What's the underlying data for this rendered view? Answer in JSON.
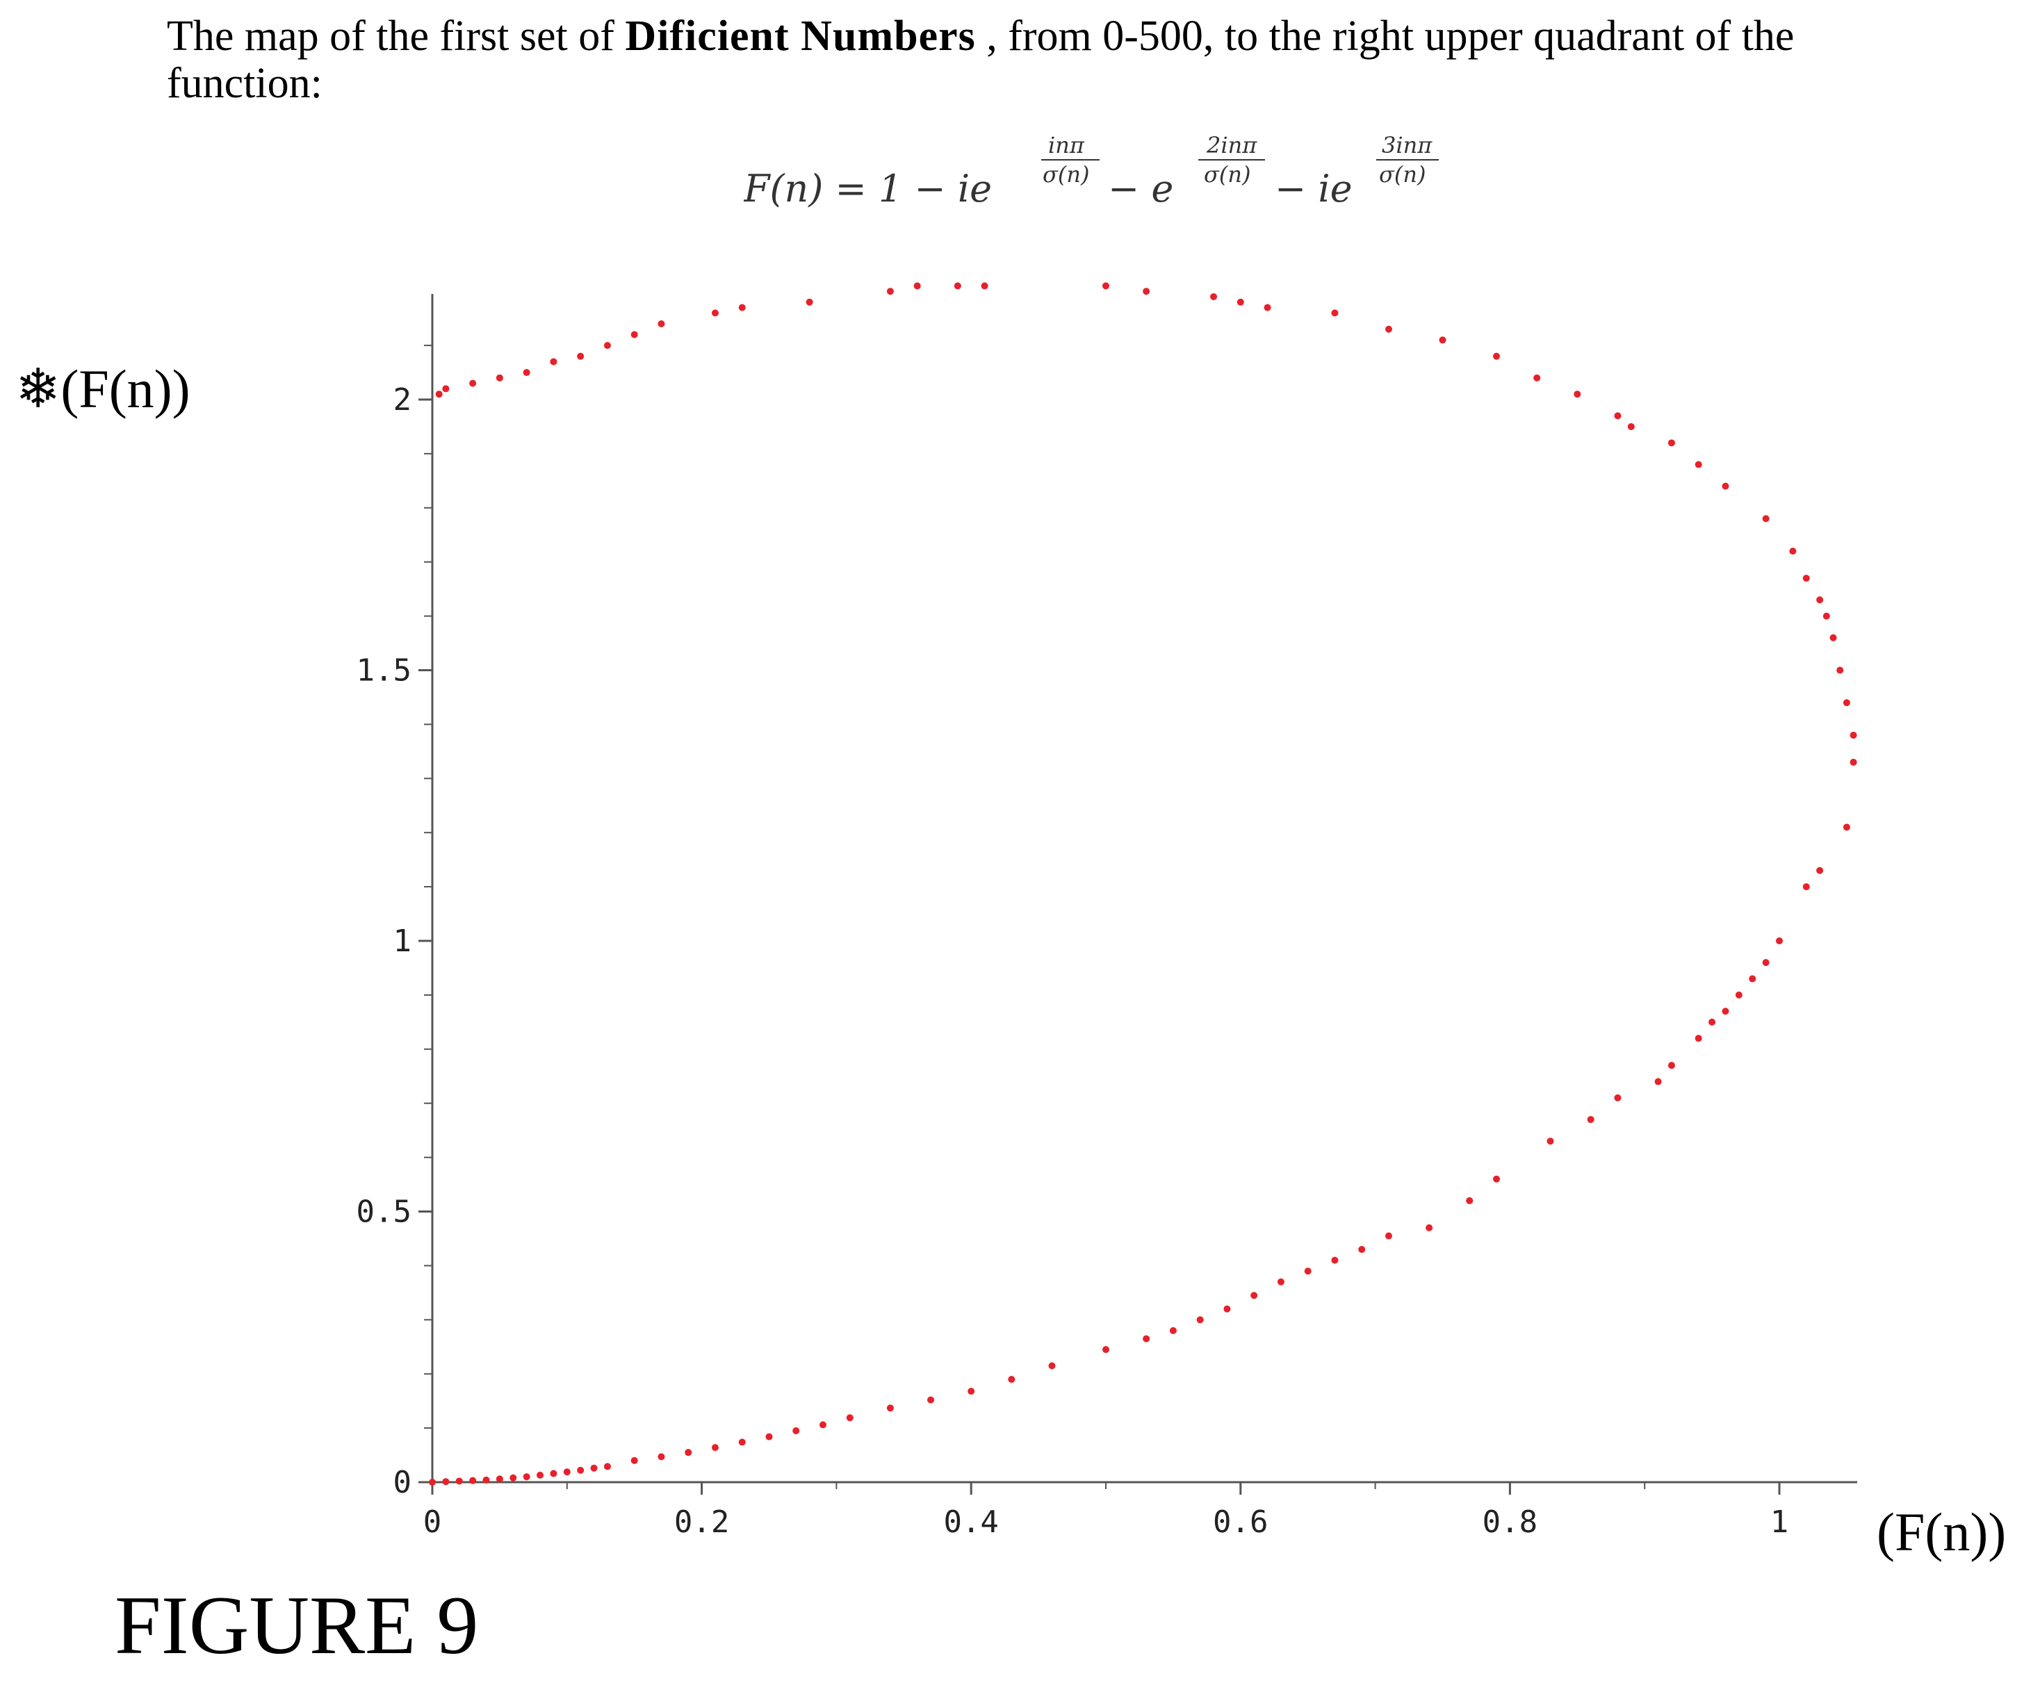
{
  "intro": {
    "before": "The map of the first set of ",
    "bold": "Dificient Numbers",
    "after": " , from 0-500, to the right upper quadrant of the function:"
  },
  "formula": {
    "lhs": "F(n) = 1 − ie",
    "exp1_num": "inπ",
    "exp1_den": "σ(n)",
    "mid1": "− e",
    "exp2_num": "2inπ",
    "exp2_den": "σ(n)",
    "mid2": "− ie",
    "exp3_num": "3inπ",
    "exp3_den": "σ(n)"
  },
  "axis_labels": {
    "y": "❄(F(n))",
    "x": "(F(n))"
  },
  "figure_label": "FIGURE 9",
  "colors": {
    "points": "#e8202a",
    "axis": "#555555"
  },
  "chart_data": {
    "type": "scatter",
    "title": "",
    "xlabel": "(F(n))",
    "ylabel": "❄(F(n))",
    "xlim": [
      0,
      1.06
    ],
    "ylim": [
      0,
      2.2
    ],
    "xticks": [
      0,
      0.2,
      0.4,
      0.6,
      0.8,
      1
    ],
    "xtick_labels": [
      "0",
      "0.2",
      "0.4",
      "0.6",
      "0.8",
      "1"
    ],
    "yticks": [
      0,
      0.5,
      1,
      1.5,
      2
    ],
    "ytick_labels": [
      "0",
      "0.5",
      "1",
      "1.5",
      "2"
    ],
    "grid": false,
    "series": [
      {
        "points": [
          [
            0,
            0
          ],
          [
            0.01,
            0.001
          ],
          [
            0.02,
            0.002
          ],
          [
            0.03,
            0.003
          ],
          [
            0.04,
            0.004
          ],
          [
            0.05,
            0.006
          ],
          [
            0.06,
            0.008
          ],
          [
            0.07,
            0.01
          ],
          [
            0.08,
            0.013
          ],
          [
            0.09,
            0.016
          ],
          [
            0.1,
            0.019
          ],
          [
            0.11,
            0.022
          ],
          [
            0.12,
            0.026
          ],
          [
            0.13,
            0.029
          ],
          [
            0.15,
            0.04
          ],
          [
            0.17,
            0.047
          ],
          [
            0.19,
            0.055
          ],
          [
            0.21,
            0.064
          ],
          [
            0.23,
            0.074
          ],
          [
            0.25,
            0.084
          ],
          [
            0.27,
            0.095
          ],
          [
            0.29,
            0.106
          ],
          [
            0.31,
            0.119
          ],
          [
            0.34,
            0.137
          ],
          [
            0.37,
            0.152
          ],
          [
            0.4,
            0.168
          ],
          [
            0.43,
            0.19
          ],
          [
            0.46,
            0.215
          ],
          [
            0.5,
            0.245
          ],
          [
            0.53,
            0.265
          ],
          [
            0.55,
            0.28
          ],
          [
            0.57,
            0.3
          ],
          [
            0.59,
            0.32
          ],
          [
            0.61,
            0.345
          ],
          [
            0.63,
            0.37
          ],
          [
            0.65,
            0.39
          ],
          [
            0.67,
            0.41
          ],
          [
            0.69,
            0.43
          ],
          [
            0.71,
            0.455
          ],
          [
            0.74,
            0.47
          ],
          [
            0.77,
            0.52
          ],
          [
            0.79,
            0.56
          ],
          [
            0.83,
            0.63
          ],
          [
            0.86,
            0.67
          ],
          [
            0.88,
            0.71
          ],
          [
            0.91,
            0.74
          ],
          [
            0.92,
            0.77
          ],
          [
            0.94,
            0.82
          ],
          [
            0.95,
            0.85
          ],
          [
            0.96,
            0.87
          ],
          [
            0.97,
            0.9
          ],
          [
            0.98,
            0.93
          ],
          [
            0.99,
            0.96
          ],
          [
            1.0,
            1.0
          ],
          [
            1.02,
            1.1
          ],
          [
            1.03,
            1.13
          ],
          [
            1.05,
            1.21
          ],
          [
            1.055,
            1.33
          ],
          [
            1.055,
            1.38
          ],
          [
            1.05,
            1.44
          ],
          [
            1.045,
            1.5
          ],
          [
            1.04,
            1.56
          ],
          [
            1.035,
            1.6
          ],
          [
            1.03,
            1.63
          ],
          [
            1.02,
            1.67
          ],
          [
            1.01,
            1.72
          ],
          [
            0.99,
            1.78
          ],
          [
            0.96,
            1.84
          ],
          [
            0.94,
            1.88
          ],
          [
            0.92,
            1.92
          ],
          [
            0.89,
            1.95
          ],
          [
            0.88,
            1.97
          ],
          [
            0.85,
            2.01
          ],
          [
            0.82,
            2.04
          ],
          [
            0.79,
            2.08
          ],
          [
            0.75,
            2.11
          ],
          [
            0.71,
            2.13
          ],
          [
            0.67,
            2.16
          ],
          [
            0.62,
            2.17
          ],
          [
            0.6,
            2.18
          ],
          [
            0.58,
            2.19
          ],
          [
            0.53,
            2.2
          ],
          [
            0.5,
            2.21
          ],
          [
            0.41,
            2.21
          ],
          [
            0.39,
            2.21
          ],
          [
            0.36,
            2.21
          ],
          [
            0.34,
            2.2
          ],
          [
            0.28,
            2.18
          ],
          [
            0.23,
            2.17
          ],
          [
            0.21,
            2.16
          ],
          [
            0.17,
            2.14
          ],
          [
            0.15,
            2.12
          ],
          [
            0.13,
            2.1
          ],
          [
            0.11,
            2.08
          ],
          [
            0.09,
            2.07
          ],
          [
            0.07,
            2.05
          ],
          [
            0.05,
            2.04
          ],
          [
            0.03,
            2.03
          ],
          [
            0.01,
            2.02
          ],
          [
            0.005,
            2.01
          ]
        ]
      }
    ]
  }
}
